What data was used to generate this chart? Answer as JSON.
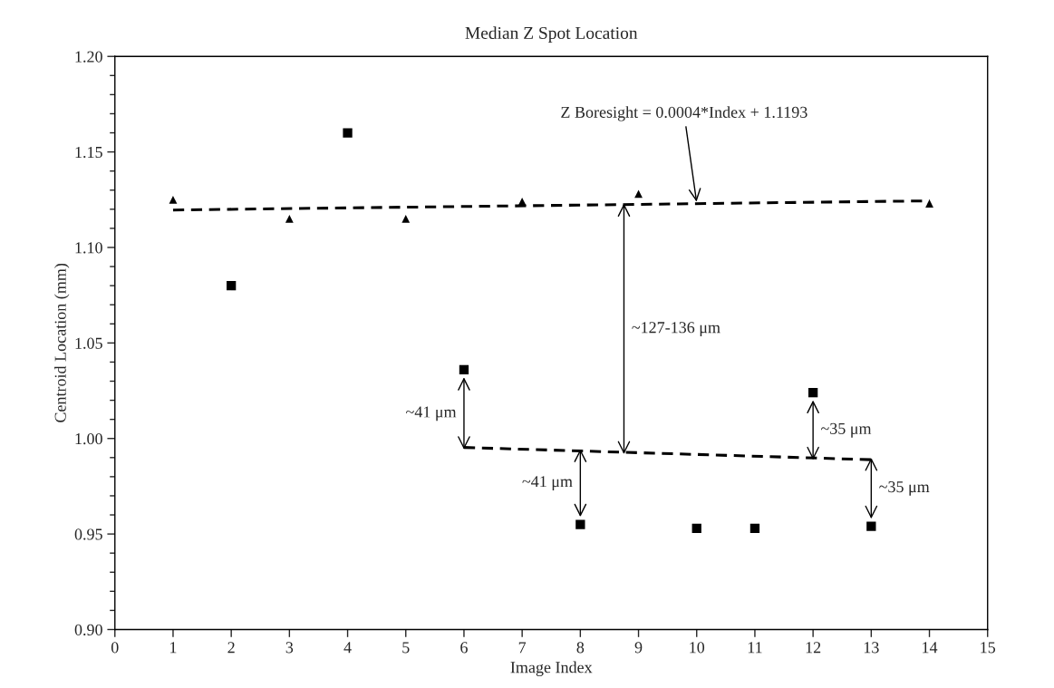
{
  "chart_data": {
    "type": "scatter",
    "title": "Median Z Spot Location",
    "xlabel": "Image Index",
    "ylabel": "Centroid Location (mm)",
    "series": [
      {
        "marker": "triangle",
        "color": "#000000",
        "x": [
          1,
          3,
          5,
          7,
          9,
          14
        ],
        "values": [
          1.125,
          1.115,
          1.115,
          1.124,
          1.128,
          1.123
        ]
      },
      {
        "marker": "square",
        "color": "#000000",
        "x": [
          2,
          4,
          6,
          8,
          10,
          11,
          12,
          13
        ],
        "values": [
          1.08,
          1.16,
          1.036,
          0.955,
          0.953,
          0.953,
          1.024,
          0.954
        ]
      },
      {
        "type": "line",
        "line_style": "dashed",
        "color": "#000000",
        "x": [
          1,
          14
        ],
        "values": [
          1.1196,
          1.1244
        ]
      },
      {
        "type": "line",
        "line_style": "dashed",
        "color": "#000000",
        "x": [
          6,
          13
        ],
        "values": [
          0.9953,
          0.9889
        ]
      }
    ],
    "xlim": [
      0,
      15
    ],
    "xticks": [
      0,
      1,
      2,
      3,
      4,
      5,
      6,
      7,
      8,
      9,
      10,
      11,
      12,
      13,
      14,
      15
    ],
    "ylim": [
      0.9,
      1.2
    ],
    "yticks": [
      {
        "value": 0.9,
        "label": "0.90"
      },
      {
        "value": 0.91,
        "label": null
      },
      {
        "value": 0.92,
        "label": null
      },
      {
        "value": 0.93,
        "label": null
      },
      {
        "value": 0.94,
        "label": null
      },
      {
        "value": 0.95,
        "label": "0.95"
      },
      {
        "value": 0.96,
        "label": null
      },
      {
        "value": 0.97,
        "label": null
      },
      {
        "value": 0.98,
        "label": null
      },
      {
        "value": 0.99,
        "label": null
      },
      {
        "value": 1.0,
        "label": "1.00"
      },
      {
        "value": 1.01,
        "label": null
      },
      {
        "value": 1.02,
        "label": null
      },
      {
        "value": 1.03,
        "label": null
      },
      {
        "value": 1.04,
        "label": null
      },
      {
        "value": 1.05,
        "label": "1.05"
      },
      {
        "value": 1.06,
        "label": null
      },
      {
        "value": 1.07,
        "label": null
      },
      {
        "value": 1.08,
        "label": null
      },
      {
        "value": 1.09,
        "label": null
      },
      {
        "value": 1.1,
        "label": "1.10"
      },
      {
        "value": 1.11,
        "label": null
      },
      {
        "value": 1.12,
        "label": null
      },
      {
        "value": 1.13,
        "label": null
      },
      {
        "value": 1.14,
        "label": null
      },
      {
        "value": 1.15,
        "label": "1.15"
      },
      {
        "value": 1.16,
        "label": null
      },
      {
        "value": 1.17,
        "label": null
      },
      {
        "value": 1.18,
        "label": null
      },
      {
        "value": 1.19,
        "label": null
      },
      {
        "value": 1.2,
        "label": "1.20"
      }
    ],
    "grid": false,
    "legend": false,
    "annotations": [
      {
        "text": "Z Boresight = 0.0004*Index + 1.1193",
        "x": 10,
        "y": 1.1233
      },
      "~127-136 μm",
      {
        "text": "~41 μm",
        "x": 6,
        "y": 1.036
      },
      {
        "text": "~41 μm",
        "x": 8,
        "y": 0.955
      },
      {
        "text": "~35 μm",
        "x": 12,
        "y": 1.024
      },
      {
        "text": "~35 μm",
        "x": 13,
        "y": 0.954
      }
    ]
  }
}
